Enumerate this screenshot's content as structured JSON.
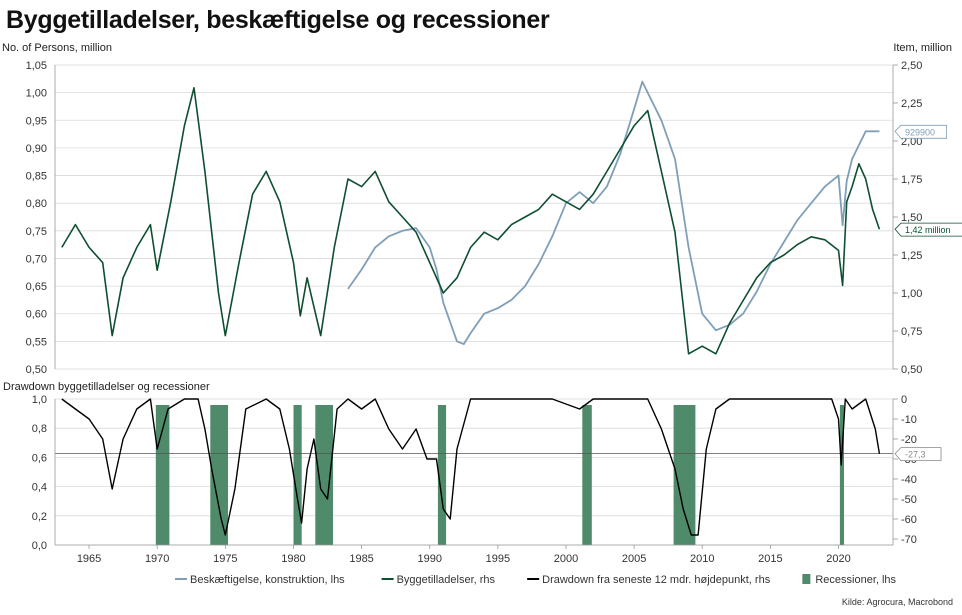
{
  "colors": {
    "employment": "#7f9fb8",
    "permits": "#0e4f31",
    "drawdown": "#000000",
    "recession": "#4f8a6a",
    "grid": "#d9d9d9",
    "zero_line": "#555555"
  },
  "chart_data": [
    {
      "type": "line",
      "title": "Byggetilladelser, beskæftigelse og recessioner",
      "left_axis_title": "No. of Persons, million",
      "right_axis_title": "Item, million",
      "left_ticks": [
        "1,05",
        "1,00",
        "0,95",
        "0,90",
        "0,85",
        "0,80",
        "0,75",
        "0,70",
        "0,65",
        "0,60",
        "0,55",
        "0,50"
      ],
      "right_ticks": [
        "2,50",
        "2,25",
        "2,00",
        "1,75",
        "1,50",
        "1,25",
        "1,00",
        "0,75",
        "0,50"
      ],
      "ylim_left": [
        0.5,
        1.05
      ],
      "ylim_right": [
        0.5,
        2.5
      ],
      "grid": true,
      "series": [
        {
          "name": "Beskæftigelse, konstruktion, lhs",
          "axis": "left",
          "points": [
            [
              1984.0,
              0.645
            ],
            [
              1985.0,
              0.68
            ],
            [
              1986.0,
              0.72
            ],
            [
              1987.0,
              0.74
            ],
            [
              1988.0,
              0.75
            ],
            [
              1989.0,
              0.755
            ],
            [
              1990.0,
              0.72
            ],
            [
              1990.5,
              0.68
            ],
            [
              1991.0,
              0.62
            ],
            [
              1992.0,
              0.55
            ],
            [
              1992.5,
              0.545
            ],
            [
              1993.0,
              0.565
            ],
            [
              1994.0,
              0.6
            ],
            [
              1995.0,
              0.61
            ],
            [
              1996.0,
              0.625
            ],
            [
              1997.0,
              0.65
            ],
            [
              1998.0,
              0.69
            ],
            [
              1999.0,
              0.74
            ],
            [
              2000.0,
              0.8
            ],
            [
              2001.0,
              0.82
            ],
            [
              2002.0,
              0.8
            ],
            [
              2003.0,
              0.83
            ],
            [
              2004.0,
              0.89
            ],
            [
              2005.0,
              0.97
            ],
            [
              2005.6,
              1.02
            ],
            [
              2006.0,
              1.0
            ],
            [
              2007.0,
              0.95
            ],
            [
              2008.0,
              0.88
            ],
            [
              2009.0,
              0.72
            ],
            [
              2010.0,
              0.6
            ],
            [
              2011.0,
              0.57
            ],
            [
              2012.0,
              0.58
            ],
            [
              2013.0,
              0.6
            ],
            [
              2014.0,
              0.64
            ],
            [
              2015.0,
              0.69
            ],
            [
              2016.0,
              0.73
            ],
            [
              2017.0,
              0.77
            ],
            [
              2018.0,
              0.8
            ],
            [
              2019.0,
              0.83
            ],
            [
              2020.0,
              0.85
            ],
            [
              2020.3,
              0.76
            ],
            [
              2020.6,
              0.84
            ],
            [
              2021.0,
              0.88
            ],
            [
              2022.0,
              0.93
            ],
            [
              2023.0,
              0.93
            ]
          ]
        },
        {
          "name": "Byggetilladelser, rhs",
          "axis": "right",
          "points": [
            [
              1963.0,
              1.3
            ],
            [
              1964.0,
              1.45
            ],
            [
              1965.0,
              1.3
            ],
            [
              1966.0,
              1.2
            ],
            [
              1966.7,
              0.72
            ],
            [
              1967.5,
              1.1
            ],
            [
              1968.5,
              1.3
            ],
            [
              1969.5,
              1.45
            ],
            [
              1970.0,
              1.15
            ],
            [
              1971.0,
              1.6
            ],
            [
              1972.0,
              2.1
            ],
            [
              1972.7,
              2.35
            ],
            [
              1973.5,
              1.8
            ],
            [
              1974.5,
              1.0
            ],
            [
              1975.0,
              0.72
            ],
            [
              1976.0,
              1.2
            ],
            [
              1977.0,
              1.65
            ],
            [
              1978.0,
              1.8
            ],
            [
              1979.0,
              1.6
            ],
            [
              1980.0,
              1.2
            ],
            [
              1980.5,
              0.85
            ],
            [
              1981.0,
              1.1
            ],
            [
              1982.0,
              0.72
            ],
            [
              1983.0,
              1.3
            ],
            [
              1984.0,
              1.75
            ],
            [
              1985.0,
              1.7
            ],
            [
              1986.0,
              1.8
            ],
            [
              1987.0,
              1.6
            ],
            [
              1988.0,
              1.5
            ],
            [
              1989.0,
              1.4
            ],
            [
              1990.0,
              1.2
            ],
            [
              1991.0,
              1.0
            ],
            [
              1992.0,
              1.1
            ],
            [
              1993.0,
              1.3
            ],
            [
              1994.0,
              1.4
            ],
            [
              1995.0,
              1.35
            ],
            [
              1996.0,
              1.45
            ],
            [
              1997.0,
              1.5
            ],
            [
              1998.0,
              1.55
            ],
            [
              1999.0,
              1.65
            ],
            [
              2000.0,
              1.6
            ],
            [
              2001.0,
              1.55
            ],
            [
              2002.0,
              1.65
            ],
            [
              2003.0,
              1.8
            ],
            [
              2004.0,
              1.95
            ],
            [
              2005.0,
              2.1
            ],
            [
              2006.0,
              2.2
            ],
            [
              2007.0,
              1.8
            ],
            [
              2008.0,
              1.4
            ],
            [
              2009.0,
              0.6
            ],
            [
              2010.0,
              0.65
            ],
            [
              2011.0,
              0.6
            ],
            [
              2012.0,
              0.8
            ],
            [
              2013.0,
              0.95
            ],
            [
              2014.0,
              1.1
            ],
            [
              2015.0,
              1.2
            ],
            [
              2016.0,
              1.25
            ],
            [
              2017.0,
              1.32
            ],
            [
              2018.0,
              1.37
            ],
            [
              2019.0,
              1.35
            ],
            [
              2020.0,
              1.28
            ],
            [
              2020.3,
              1.05
            ],
            [
              2020.6,
              1.6
            ],
            [
              2021.0,
              1.7
            ],
            [
              2021.5,
              1.85
            ],
            [
              2022.0,
              1.75
            ],
            [
              2022.5,
              1.55
            ],
            [
              2023.0,
              1.42
            ]
          ]
        }
      ],
      "callouts": [
        {
          "label": "929900",
          "value": 0.93,
          "axis": "left",
          "color": "#7f9fb8"
        },
        {
          "label": "1,42 million",
          "value": 1.42,
          "axis": "right",
          "color": "#0e4f31"
        }
      ]
    },
    {
      "type": "line",
      "title": "Drawdown byggetilladelser og recessioner",
      "left_ticks": [
        "1,0",
        "0,8",
        "0,6",
        "0,4",
        "0,2",
        "0,0"
      ],
      "right_ticks": [
        "0",
        "-10",
        "-20",
        "-30",
        "-40",
        "-50",
        "-60",
        "-70"
      ],
      "ylim_left": [
        0,
        1
      ],
      "ylim_right": [
        -73,
        0
      ],
      "x_ticks": [
        "1965",
        "1970",
        "1975",
        "1980",
        "1985",
        "1990",
        "1995",
        "2000",
        "2005",
        "2010",
        "2015",
        "2020"
      ],
      "xlim": [
        1962.5,
        2024
      ],
      "grid": true,
      "series": [
        {
          "name": "Drawdown fra seneste 12 mdr. højdepunkt, rhs",
          "axis": "right",
          "points": [
            [
              1963.0,
              0
            ],
            [
              1964.0,
              -5
            ],
            [
              1965.0,
              -10
            ],
            [
              1966.0,
              -20
            ],
            [
              1966.7,
              -45
            ],
            [
              1967.5,
              -20
            ],
            [
              1968.5,
              -5
            ],
            [
              1969.5,
              0
            ],
            [
              1970.0,
              -25
            ],
            [
              1970.8,
              -5
            ],
            [
              1972.0,
              0
            ],
            [
              1973.0,
              0
            ],
            [
              1973.5,
              -15
            ],
            [
              1974.0,
              -35
            ],
            [
              1974.7,
              -60
            ],
            [
              1975.0,
              -68
            ],
            [
              1975.7,
              -45
            ],
            [
              1976.5,
              -5
            ],
            [
              1978.0,
              0
            ],
            [
              1979.0,
              -5
            ],
            [
              1979.7,
              -25
            ],
            [
              1980.3,
              -50
            ],
            [
              1980.6,
              -62
            ],
            [
              1981.0,
              -35
            ],
            [
              1981.5,
              -20
            ],
            [
              1982.0,
              -45
            ],
            [
              1982.5,
              -50
            ],
            [
              1983.2,
              -5
            ],
            [
              1984.0,
              0
            ],
            [
              1985.0,
              -5
            ],
            [
              1986.0,
              0
            ],
            [
              1987.0,
              -15
            ],
            [
              1988.0,
              -25
            ],
            [
              1989.0,
              -15
            ],
            [
              1989.8,
              -30
            ],
            [
              1990.5,
              -30
            ],
            [
              1991.0,
              -55
            ],
            [
              1991.5,
              -60
            ],
            [
              1992.0,
              -25
            ],
            [
              1993.0,
              0
            ],
            [
              1995.0,
              0
            ],
            [
              1997.0,
              0
            ],
            [
              1999.0,
              0
            ],
            [
              2001.0,
              -5
            ],
            [
              2002.0,
              0
            ],
            [
              2004.0,
              0
            ],
            [
              2006.0,
              0
            ],
            [
              2007.0,
              -15
            ],
            [
              2008.0,
              -35
            ],
            [
              2008.6,
              -55
            ],
            [
              2009.2,
              -68
            ],
            [
              2009.7,
              -68
            ],
            [
              2010.3,
              -25
            ],
            [
              2011.0,
              -5
            ],
            [
              2012.0,
              0
            ],
            [
              2014.0,
              0
            ],
            [
              2016.0,
              0
            ],
            [
              2018.0,
              0
            ],
            [
              2019.5,
              0
            ],
            [
              2020.0,
              -10
            ],
            [
              2020.2,
              -33
            ],
            [
              2020.5,
              0
            ],
            [
              2021.0,
              -5
            ],
            [
              2022.0,
              0
            ],
            [
              2022.7,
              -15
            ],
            [
              2023.0,
              -27.3
            ]
          ]
        },
        {
          "name": "Recessioner, lhs",
          "axis": "left",
          "ranges": [
            [
              1969.9,
              1970.9
            ],
            [
              1973.9,
              1975.2
            ],
            [
              1980.0,
              1980.6
            ],
            [
              1981.6,
              1982.9
            ],
            [
              1990.6,
              1991.2
            ],
            [
              2001.2,
              2001.9
            ],
            [
              2007.9,
              2009.5
            ],
            [
              2020.1,
              2020.4
            ]
          ]
        }
      ],
      "callouts": [
        {
          "label": "-27,3",
          "value": -27.3,
          "axis": "right",
          "color": "#888888"
        }
      ]
    }
  ],
  "legend": [
    {
      "label": "Beskæftigelse, konstruktion, lhs",
      "kind": "line",
      "color": "#7f9fb8"
    },
    {
      "label": "Byggetilladelser, rhs",
      "kind": "line",
      "color": "#0e4f31"
    },
    {
      "label": "Drawdown fra seneste 12 mdr. højdepunkt, rhs",
      "kind": "line",
      "color": "#000000"
    },
    {
      "label": "Recessioner, lhs",
      "kind": "bar",
      "color": "#4f8a6a"
    }
  ],
  "source": "Kilde: Agrocura, Macrobond"
}
